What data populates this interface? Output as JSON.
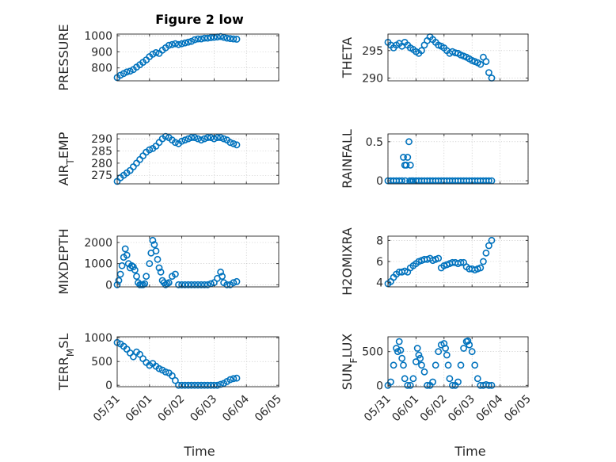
{
  "figure_title": "Figure 2 low",
  "xlabel": "Time",
  "colors": {
    "marker": "#0072BD",
    "axis": "#262626",
    "grid": "#bdbdbd"
  },
  "x_ticks": [
    "05/31",
    "06/01",
    "06/02",
    "06/03",
    "06/04",
    "06/05"
  ],
  "chart_data": [
    {
      "type": "scatter",
      "ylabel": "PRESSURE",
      "title": "Figure 2 low",
      "grid": true,
      "xlim": [
        0,
        5
      ],
      "ylim": [
        720,
        1010
      ],
      "yticks": [
        800,
        900,
        1000
      ],
      "ytick_labels": [
        "800",
        "900",
        "1000"
      ],
      "x": [
        0.0,
        0.1,
        0.2,
        0.3,
        0.4,
        0.5,
        0.6,
        0.7,
        0.8,
        0.9,
        1.0,
        1.1,
        1.2,
        1.3,
        1.4,
        1.5,
        1.6,
        1.7,
        1.8,
        1.9,
        2.0,
        2.1,
        2.2,
        2.3,
        2.4,
        2.5,
        2.6,
        2.7,
        2.8,
        2.9,
        3.0,
        3.1,
        3.2,
        3.3,
        3.4,
        3.5,
        3.6,
        3.7
      ],
      "y": [
        740,
        755,
        765,
        775,
        780,
        790,
        805,
        820,
        835,
        850,
        870,
        885,
        895,
        890,
        910,
        925,
        940,
        945,
        950,
        945,
        950,
        955,
        960,
        965,
        975,
        980,
        980,
        985,
        985,
        988,
        990,
        992,
        995,
        990,
        985,
        982,
        980,
        978
      ]
    },
    {
      "type": "scatter",
      "ylabel": "THETA",
      "grid": true,
      "xlim": [
        0,
        5
      ],
      "ylim": [
        289.5,
        298
      ],
      "yticks": [
        290,
        295
      ],
      "ytick_labels": [
        "290",
        "295"
      ],
      "x": [
        0.0,
        0.1,
        0.2,
        0.3,
        0.4,
        0.5,
        0.6,
        0.7,
        0.8,
        0.9,
        1.0,
        1.1,
        1.2,
        1.3,
        1.4,
        1.5,
        1.6,
        1.7,
        1.8,
        1.9,
        2.0,
        2.1,
        2.2,
        2.3,
        2.4,
        2.5,
        2.6,
        2.7,
        2.8,
        2.9,
        3.0,
        3.1,
        3.2,
        3.3,
        3.4,
        3.5,
        3.6,
        3.7
      ],
      "y": [
        296.5,
        296.0,
        295.5,
        296.0,
        296.3,
        295.8,
        296.5,
        296.0,
        295.5,
        295.2,
        294.8,
        294.5,
        295.0,
        296.0,
        296.8,
        297.5,
        297.0,
        296.5,
        296.0,
        295.8,
        295.5,
        295.0,
        294.5,
        294.8,
        294.6,
        294.5,
        294.2,
        294.0,
        293.8,
        293.5,
        293.2,
        293.0,
        292.8,
        292.5,
        293.8,
        293.0,
        291.0,
        290.0
      ]
    },
    {
      "type": "scatter",
      "ylabel": "AIR_TEMP",
      "grid": true,
      "xlim": [
        0,
        5
      ],
      "ylim": [
        271.5,
        292
      ],
      "yticks": [
        275,
        280,
        285,
        290
      ],
      "ytick_labels": [
        "275",
        "280",
        "285",
        "290"
      ],
      "x": [
        0.0,
        0.1,
        0.2,
        0.3,
        0.4,
        0.5,
        0.6,
        0.7,
        0.8,
        0.9,
        1.0,
        1.1,
        1.2,
        1.3,
        1.4,
        1.5,
        1.6,
        1.7,
        1.8,
        1.9,
        2.0,
        2.1,
        2.2,
        2.3,
        2.4,
        2.5,
        2.6,
        2.7,
        2.8,
        2.9,
        3.0,
        3.1,
        3.2,
        3.3,
        3.4,
        3.5,
        3.6,
        3.7
      ],
      "y": [
        272.5,
        274.0,
        275.0,
        276.0,
        277.0,
        278.5,
        280.0,
        281.5,
        283.0,
        284.5,
        285.5,
        286.0,
        287.0,
        288.5,
        290.0,
        291.0,
        290.5,
        289.5,
        288.5,
        288.0,
        289.0,
        289.5,
        290.0,
        290.5,
        290.5,
        290.0,
        289.5,
        290.0,
        290.5,
        290.5,
        290.0,
        290.5,
        290.5,
        290.0,
        289.5,
        288.5,
        288.0,
        287.5
      ]
    },
    {
      "type": "scatter",
      "ylabel": "RAINFALL",
      "grid": true,
      "xlim": [
        0,
        5
      ],
      "ylim": [
        -0.04,
        0.6
      ],
      "yticks": [
        0,
        0.5
      ],
      "ytick_labels": [
        "0",
        "0.5"
      ],
      "x": [
        0.0,
        0.1,
        0.2,
        0.3,
        0.4,
        0.5,
        0.55,
        0.6,
        0.62,
        0.65,
        0.7,
        0.75,
        0.78,
        0.8,
        0.85,
        0.9,
        1.0,
        1.1,
        1.2,
        1.3,
        1.4,
        1.5,
        1.6,
        1.7,
        1.8,
        1.9,
        2.0,
        2.1,
        2.2,
        2.3,
        2.4,
        2.5,
        2.6,
        2.7,
        2.8,
        2.9,
        3.0,
        3.1,
        3.2,
        3.3,
        3.4,
        3.5,
        3.6,
        3.7
      ],
      "y": [
        0,
        0,
        0,
        0,
        0,
        0,
        0.3,
        0.2,
        0,
        0.2,
        0.3,
        0.5,
        0,
        0.2,
        0,
        0,
        0,
        0,
        0,
        0,
        0,
        0,
        0,
        0,
        0,
        0,
        0,
        0,
        0,
        0,
        0,
        0,
        0,
        0,
        0,
        0,
        0,
        0,
        0,
        0,
        0,
        0,
        0,
        0
      ]
    },
    {
      "type": "scatter",
      "ylabel": "MIXDEPTH",
      "grid": true,
      "xlim": [
        0,
        5
      ],
      "ylim": [
        -100,
        2300
      ],
      "yticks": [
        0,
        1000,
        2000
      ],
      "ytick_labels": [
        "0",
        "1000",
        "2000"
      ],
      "x": [
        0.0,
        0.05,
        0.1,
        0.15,
        0.2,
        0.25,
        0.3,
        0.35,
        0.4,
        0.45,
        0.5,
        0.55,
        0.6,
        0.65,
        0.7,
        0.75,
        0.8,
        0.85,
        0.9,
        1.0,
        1.05,
        1.1,
        1.15,
        1.2,
        1.25,
        1.3,
        1.35,
        1.4,
        1.45,
        1.5,
        1.55,
        1.6,
        1.7,
        1.8,
        1.9,
        2.0,
        2.1,
        2.2,
        2.3,
        2.4,
        2.5,
        2.6,
        2.7,
        2.8,
        2.9,
        3.0,
        3.1,
        3.2,
        3.25,
        3.3,
        3.4,
        3.5,
        3.6,
        3.7
      ],
      "y": [
        0,
        200,
        500,
        900,
        1300,
        1700,
        1400,
        1000,
        800,
        900,
        850,
        700,
        400,
        100,
        0,
        0,
        0,
        50,
        400,
        1000,
        1500,
        2100,
        1900,
        1600,
        1200,
        800,
        600,
        200,
        100,
        0,
        50,
        100,
        400,
        500,
        0,
        0,
        0,
        0,
        0,
        0,
        0,
        0,
        0,
        0,
        50,
        100,
        300,
        600,
        400,
        100,
        0,
        0,
        100,
        150
      ]
    },
    {
      "type": "scatter",
      "ylabel": "H2OMIXRA",
      "grid": true,
      "xlim": [
        0,
        5
      ],
      "ylim": [
        3.6,
        8.4
      ],
      "yticks": [
        4,
        6,
        8
      ],
      "ytick_labels": [
        "4",
        "6",
        "8"
      ],
      "x": [
        0.0,
        0.1,
        0.2,
        0.3,
        0.4,
        0.5,
        0.6,
        0.7,
        0.8,
        0.9,
        1.0,
        1.1,
        1.2,
        1.3,
        1.4,
        1.5,
        1.6,
        1.7,
        1.8,
        1.9,
        2.0,
        2.1,
        2.2,
        2.3,
        2.4,
        2.5,
        2.6,
        2.7,
        2.8,
        2.9,
        3.0,
        3.1,
        3.2,
        3.3,
        3.4,
        3.5,
        3.6,
        3.7
      ],
      "y": [
        3.9,
        4.1,
        4.5,
        4.8,
        5.0,
        5.0,
        5.1,
        5.0,
        5.4,
        5.6,
        5.8,
        6.0,
        6.1,
        6.2,
        6.2,
        6.3,
        6.1,
        6.2,
        6.3,
        5.4,
        5.6,
        5.7,
        5.8,
        5.9,
        5.9,
        5.8,
        5.9,
        5.9,
        5.5,
        5.3,
        5.3,
        5.2,
        5.3,
        5.4,
        6.0,
        6.8,
        7.5,
        8.0
      ]
    },
    {
      "type": "scatter",
      "ylabel": "TERR_MSL",
      "grid": true,
      "xlim": [
        0,
        5
      ],
      "ylim": [
        -30,
        1020
      ],
      "yticks": [
        0,
        500,
        1000
      ],
      "ytick_labels": [
        "0",
        "500",
        "1000"
      ],
      "x": [
        0.0,
        0.1,
        0.2,
        0.3,
        0.4,
        0.5,
        0.6,
        0.7,
        0.8,
        0.9,
        1.0,
        1.1,
        1.2,
        1.3,
        1.4,
        1.5,
        1.6,
        1.7,
        1.8,
        1.9,
        2.0,
        2.1,
        2.2,
        2.3,
        2.4,
        2.5,
        2.6,
        2.7,
        2.8,
        2.9,
        3.0,
        3.1,
        3.2,
        3.3,
        3.4,
        3.5,
        3.6,
        3.7
      ],
      "y": [
        900,
        870,
        820,
        760,
        680,
        600,
        700,
        650,
        560,
        480,
        420,
        460,
        400,
        350,
        320,
        280,
        260,
        200,
        100,
        0,
        0,
        0,
        0,
        0,
        0,
        0,
        0,
        0,
        0,
        0,
        0,
        0,
        20,
        40,
        80,
        120,
        140,
        150
      ]
    },
    {
      "type": "scatter",
      "ylabel": "SUN_FLUX",
      "grid": true,
      "xlim": [
        0,
        5
      ],
      "ylim": [
        -20,
        720
      ],
      "yticks": [
        0,
        500
      ],
      "ytick_labels": [
        "0",
        "500"
      ],
      "x": [
        0.0,
        0.1,
        0.2,
        0.3,
        0.35,
        0.4,
        0.45,
        0.5,
        0.55,
        0.6,
        0.7,
        0.8,
        0.9,
        1.0,
        1.05,
        1.1,
        1.15,
        1.2,
        1.3,
        1.4,
        1.5,
        1.6,
        1.7,
        1.8,
        1.9,
        2.0,
        2.05,
        2.1,
        2.15,
        2.2,
        2.3,
        2.4,
        2.5,
        2.6,
        2.7,
        2.8,
        2.85,
        2.9,
        3.0,
        3.1,
        3.2,
        3.3,
        3.4,
        3.5,
        3.6,
        3.7
      ],
      "y": [
        0,
        50,
        300,
        550,
        500,
        650,
        520,
        400,
        300,
        100,
        0,
        0,
        100,
        350,
        550,
        450,
        400,
        300,
        200,
        0,
        0,
        50,
        300,
        500,
        600,
        620,
        550,
        450,
        300,
        100,
        0,
        0,
        50,
        300,
        550,
        650,
        660,
        600,
        500,
        300,
        100,
        0,
        0,
        10,
        0,
        0
      ]
    }
  ]
}
